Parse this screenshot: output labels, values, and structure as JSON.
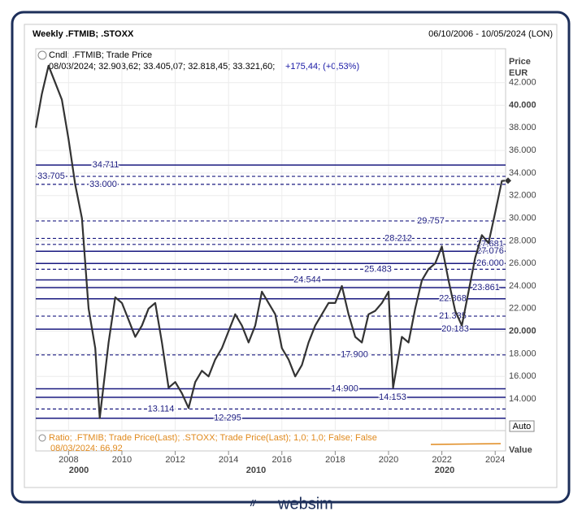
{
  "chart_data": {
    "type": "line",
    "title": "Weekly .FTMIB; .STOXX",
    "date_range": "06/10/2006 - 10/05/2024 (LON)",
    "legend_line1": "Cndl; .FTMIB; Trade Price",
    "legend_line2": "08/03/2024; 32.903,62; 33.405,07; 32.818,45; 33.321,60;",
    "legend_change": "+175,44; (+0,53%)",
    "y_axis_title": "Price",
    "y_axis_unit": "EUR",
    "ratio_line1": "Ratio; .FTMIB; Trade Price(Last); .STOXX; Trade Price(Last);  1,0; 1,0; False; False",
    "ratio_line2": "08/03/2024: 66,92",
    "ratio_axis_title": "Value",
    "auto_button": "Auto",
    "brand": "websim",
    "decade_labels": [
      "2000",
      "2010",
      "2020"
    ],
    "xlim": [
      2006.77,
      2024.39
    ],
    "xticks": [
      2008,
      2010,
      2012,
      2014,
      2016,
      2018,
      2020,
      2022,
      2024
    ],
    "ylim": [
      11200,
      45000
    ],
    "yticks": [
      {
        "value": 14000,
        "label": "14.000"
      },
      {
        "value": 16000,
        "label": "16.000"
      },
      {
        "value": 18000,
        "label": "18.000"
      },
      {
        "value": 20000,
        "label": "20.000"
      },
      {
        "value": 22000,
        "label": "22.000"
      },
      {
        "value": 24000,
        "label": "24.000"
      },
      {
        "value": 26000,
        "label": "26.000"
      },
      {
        "value": 28000,
        "label": "28.000"
      },
      {
        "value": 30000,
        "label": "30.000"
      },
      {
        "value": 32000,
        "label": "32.000"
      },
      {
        "value": 34000,
        "label": "34.000"
      },
      {
        "value": 36000,
        "label": "36.000"
      },
      {
        "value": 38000,
        "label": "38.000"
      },
      {
        "value": 40000,
        "label": "40.000"
      },
      {
        "value": 42000,
        "label": "42.000"
      }
    ],
    "grid": true,
    "series": [
      {
        "name": ".FTMIB",
        "color": "#333333",
        "x": [
          2006.77,
          2007.0,
          2007.25,
          2007.5,
          2007.75,
          2008.0,
          2008.25,
          2008.5,
          2008.75,
          2009.0,
          2009.17,
          2009.5,
          2009.75,
          2010.0,
          2010.25,
          2010.5,
          2010.75,
          2011.0,
          2011.25,
          2011.5,
          2011.75,
          2012.0,
          2012.25,
          2012.5,
          2012.75,
          2013.0,
          2013.25,
          2013.5,
          2013.75,
          2014.0,
          2014.25,
          2014.5,
          2014.75,
          2015.0,
          2015.25,
          2015.5,
          2015.75,
          2016.0,
          2016.25,
          2016.5,
          2016.75,
          2017.0,
          2017.25,
          2017.5,
          2017.75,
          2018.0,
          2018.25,
          2018.5,
          2018.75,
          2019.0,
          2019.25,
          2019.5,
          2019.75,
          2020.0,
          2020.17,
          2020.5,
          2020.75,
          2021.0,
          2021.25,
          2021.5,
          2021.75,
          2022.0,
          2022.25,
          2022.5,
          2022.75,
          2023.0,
          2023.25,
          2023.5,
          2023.75,
          2024.0,
          2024.25,
          2024.36
        ],
        "values": [
          38000,
          41000,
          43500,
          42000,
          40500,
          37000,
          33000,
          30000,
          22000,
          18500,
          12300,
          19000,
          23000,
          22500,
          21000,
          19500,
          20500,
          22000,
          22500,
          19000,
          15000,
          15500,
          14500,
          13200,
          15500,
          16500,
          16000,
          17500,
          18500,
          20000,
          21500,
          20500,
          19000,
          20500,
          23500,
          22500,
          21500,
          18500,
          17500,
          16000,
          17000,
          19000,
          20500,
          21500,
          22500,
          22500,
          24000,
          21500,
          19500,
          19000,
          21500,
          21800,
          22500,
          23500,
          15000,
          19500,
          19000,
          22000,
          24500,
          25500,
          26000,
          27500,
          24500,
          21800,
          20500,
          23500,
          26500,
          28500,
          27800,
          30500,
          33300,
          33321.6
        ]
      }
    ],
    "levels": [
      {
        "value": 34711,
        "label": "34.711",
        "style": "solid"
      },
      {
        "value": 33705,
        "label": "33.705",
        "style": "dashed"
      },
      {
        "value": 33000,
        "label": "33.000",
        "style": "dashed"
      },
      {
        "value": 29757,
        "label": "29.757",
        "style": "dashed"
      },
      {
        "value": 28212,
        "label": "28.212",
        "style": "dashed"
      },
      {
        "value": 27681,
        "label": "27.681",
        "style": "dashed"
      },
      {
        "value": 27076,
        "label": "27.076",
        "style": "solid"
      },
      {
        "value": 26000,
        "label": "26.000",
        "style": "solid"
      },
      {
        "value": 25483,
        "label": "25.483",
        "style": "dashed"
      },
      {
        "value": 24544,
        "label": "24.544",
        "style": "solid"
      },
      {
        "value": 23861,
        "label": "23.861",
        "style": "solid"
      },
      {
        "value": 22868,
        "label": "22.868",
        "style": "solid"
      },
      {
        "value": 21335,
        "label": "21.335",
        "style": "dashed"
      },
      {
        "value": 20183,
        "label": "20.183",
        "style": "solid"
      },
      {
        "value": 17900,
        "label": "17.900",
        "style": "dashed"
      },
      {
        "value": 14900,
        "label": "14.900",
        "style": "solid"
      },
      {
        "value": 14153,
        "label": "14.153",
        "style": "solid"
      },
      {
        "value": 13114,
        "label": "13.114",
        "style": "dashed"
      },
      {
        "value": 12295,
        "label": "12.295",
        "style": "solid"
      }
    ],
    "last_marker": 33321.6
  }
}
